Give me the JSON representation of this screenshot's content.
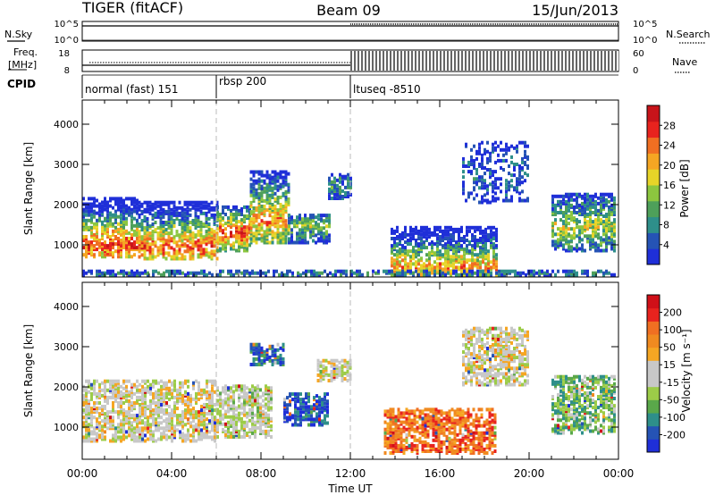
{
  "header": {
    "radar": "TIGER (fitACF)",
    "beam": "Beam 09",
    "date": "15/Jun/2013"
  },
  "status_panels": {
    "nsky_label": "N.Sky",
    "nsearch_label": "N.Search",
    "nsky_ticks": [
      "10^5",
      "10^0"
    ],
    "nsearch_ticks": [
      "10^5",
      "10^0"
    ],
    "freq_label_1": "Freq.",
    "freq_label_2": "[MHz]",
    "freq_ticks": [
      "18",
      "8"
    ],
    "nave_label": "Nave",
    "nave_ticks": [
      "60",
      "0"
    ],
    "cpid_label": "CPID",
    "cpid_segments": [
      {
        "label": "normal (fast) 151",
        "start_h": 0,
        "end_h": 6
      },
      {
        "label": "rbsp 200",
        "start_h": 6,
        "end_h": 12
      },
      {
        "label": "ltuseq -8510",
        "start_h": 12,
        "end_h": 24
      }
    ]
  },
  "chart_data": [
    {
      "type": "heatmap",
      "panel": "power",
      "ylabel": "Slant Range [km]",
      "xlim": [
        0,
        24
      ],
      "ylim": [
        200,
        4600
      ],
      "yticks": [
        1000,
        2000,
        3000,
        4000
      ],
      "colorbar": {
        "label": "Power [dB]",
        "ticks": [
          "4",
          "8",
          "12",
          "16",
          "20",
          "24",
          "28"
        ],
        "colors": [
          "#1f2fd8",
          "#2553b5",
          "#2e8f8a",
          "#4ea05a",
          "#8cc63f",
          "#e7d428",
          "#f5a623",
          "#f06f22",
          "#e8231e",
          "#c8141a"
        ]
      },
      "features": [
        {
          "t0": 0.0,
          "t1": 2.5,
          "r0": 750,
          "r1": 2200,
          "peak_r": 1050,
          "level": 0.85
        },
        {
          "t0": 2.5,
          "t1": 6.0,
          "r0": 700,
          "r1": 2100,
          "peak_r": 1000,
          "level": 0.8
        },
        {
          "t0": 6.0,
          "t1": 7.5,
          "r0": 900,
          "r1": 2000,
          "peak_r": 1350,
          "level": 0.85
        },
        {
          "t0": 7.5,
          "t1": 9.2,
          "r0": 1100,
          "r1": 2900,
          "peak_r": 1650,
          "level": 0.7
        },
        {
          "t0": 9.2,
          "t1": 11.0,
          "r0": 1100,
          "r1": 1800,
          "peak_r": 1500,
          "level": 0.45
        },
        {
          "t0": 11.0,
          "t1": 12.0,
          "r0": 2200,
          "r1": 2800,
          "peak_r": 2500,
          "level": 0.3
        },
        {
          "t0": 13.8,
          "t1": 18.5,
          "r0": 300,
          "r1": 1500,
          "peak_r": 500,
          "level": 0.7
        },
        {
          "t0": 17.0,
          "t1": 20.0,
          "r0": 2100,
          "r1": 3600,
          "peak_r": 2800,
          "level": 0.15
        },
        {
          "t0": 21.0,
          "t1": 24.0,
          "r0": 900,
          "r1": 2300,
          "peak_r": 1500,
          "level": 0.5
        },
        {
          "t0": 0.0,
          "t1": 24.0,
          "r0": 250,
          "r1": 420,
          "peak_r": 330,
          "level": 0.25
        }
      ]
    },
    {
      "type": "heatmap",
      "panel": "velocity",
      "ylabel": "Slant Range [km]",
      "xlabel": "Time UT",
      "xlim": [
        0,
        24
      ],
      "ylim": [
        200,
        4600
      ],
      "yticks": [
        1000,
        2000,
        3000,
        4000
      ],
      "xticks": [
        "00:00",
        "04:00",
        "08:00",
        "12:00",
        "16:00",
        "20:00",
        "00:00"
      ],
      "colorbar": {
        "label": "Velocity [m s⁻¹]",
        "ticks": [
          "200",
          "100",
          "50",
          "15",
          "-15",
          "-50",
          "-100",
          "-200"
        ],
        "colors": [
          "#1f2fd8",
          "#2553b5",
          "#2e8f8a",
          "#5aa84a",
          "#9ccc48",
          "#c8c8c8",
          "#c8c8c8",
          "#f5a623",
          "#f08a20",
          "#f06f22",
          "#e8231e",
          "#d01018"
        ]
      },
      "features": [
        {
          "t0": 0.0,
          "t1": 6.0,
          "r0": 700,
          "r1": 2200,
          "bias": 0.0
        },
        {
          "t0": 6.0,
          "t1": 8.5,
          "r0": 800,
          "r1": 2100,
          "bias": 0.1
        },
        {
          "t0": 9.0,
          "t1": 11.0,
          "r0": 1100,
          "r1": 1900,
          "bias": 0.85
        },
        {
          "t0": 7.5,
          "t1": 9.0,
          "r0": 2600,
          "r1": 3100,
          "bias": 0.8
        },
        {
          "t0": 10.5,
          "t1": 12.0,
          "r0": 2200,
          "r1": 2700,
          "bias": 0.0
        },
        {
          "t0": 13.5,
          "t1": 18.5,
          "r0": 400,
          "r1": 1500,
          "bias": -0.6
        },
        {
          "t0": 17.0,
          "t1": 20.0,
          "r0": 2100,
          "r1": 3500,
          "bias": 0.0
        },
        {
          "t0": 21.0,
          "t1": 24.0,
          "r0": 900,
          "r1": 2300,
          "bias": 0.4
        }
      ]
    }
  ]
}
